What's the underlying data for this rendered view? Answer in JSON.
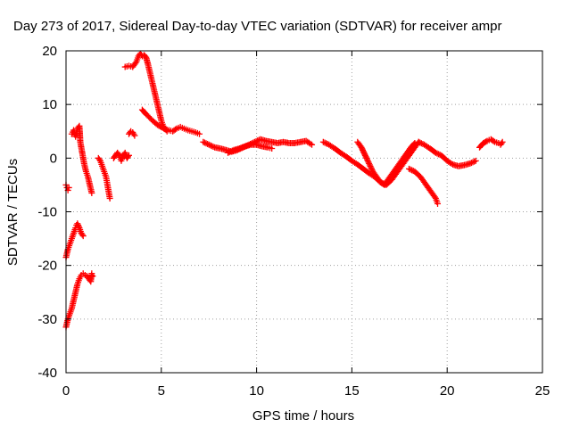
{
  "chart_data": {
    "type": "scatter",
    "title": "Day 273 of 2017, Sidereal Day-to-day VTEC variation (SDTVAR) for receiver ampr",
    "xlabel": "GPS time / hours",
    "ylabel": "SDTVAR / TECUs",
    "xlim": [
      0,
      25
    ],
    "ylim": [
      -40,
      20
    ],
    "xticks": [
      0,
      5,
      10,
      15,
      20,
      25
    ],
    "yticks": [
      -40,
      -30,
      -20,
      -10,
      0,
      10,
      20
    ],
    "x_tick_labels": [
      "0",
      "5",
      "10",
      "15",
      "20",
      "25"
    ],
    "y_tick_labels": [
      "-40",
      "-30",
      "-20",
      "-10",
      "0",
      "10",
      "20"
    ],
    "grid": true,
    "marker": "plus",
    "color": "#ff0000",
    "series": [
      {
        "segments": [
          [
            [
              0.0,
              -5.0
            ],
            [
              0.05,
              -5.5
            ],
            [
              0.1,
              -6.0
            ],
            [
              0.15,
              -5.5
            ]
          ],
          [
            [
              0.0,
              -31.5
            ],
            [
              0.1,
              -30.0
            ],
            [
              0.2,
              -29.0
            ],
            [
              0.3,
              -28.0
            ],
            [
              0.4,
              -26.5
            ],
            [
              0.5,
              -25.0
            ],
            [
              0.6,
              -23.5
            ],
            [
              0.7,
              -22.5
            ],
            [
              0.8,
              -21.8
            ],
            [
              0.9,
              -21.5
            ],
            [
              1.0,
              -21.8
            ],
            [
              1.1,
              -22.0
            ],
            [
              1.2,
              -22.5
            ],
            [
              1.3,
              -23.0
            ],
            [
              1.35,
              -21.5
            ],
            [
              1.4,
              -22.0
            ]
          ],
          [
            [
              0.0,
              -18.5
            ],
            [
              0.1,
              -17.0
            ],
            [
              0.2,
              -16.0
            ],
            [
              0.3,
              -15.0
            ],
            [
              0.4,
              -14.0
            ],
            [
              0.5,
              -13.0
            ],
            [
              0.55,
              -12.5
            ],
            [
              0.6,
              -12.2
            ],
            [
              0.7,
              -13.0
            ],
            [
              0.8,
              -14.0
            ],
            [
              0.9,
              -14.5
            ]
          ],
          [
            [
              0.3,
              4.5
            ],
            [
              0.4,
              5.2
            ],
            [
              0.5,
              4.0
            ],
            [
              0.6,
              5.5
            ],
            [
              0.7,
              6.0
            ],
            [
              0.75,
              3.0
            ],
            [
              0.85,
              1.0
            ],
            [
              0.95,
              -1.0
            ],
            [
              1.05,
              -2.5
            ],
            [
              1.15,
              -3.5
            ],
            [
              1.25,
              -5.0
            ],
            [
              1.35,
              -6.5
            ]
          ],
          [
            [
              1.7,
              0.0
            ],
            [
              1.8,
              -0.5
            ],
            [
              1.9,
              -1.5
            ],
            [
              2.0,
              -2.5
            ],
            [
              2.1,
              -3.5
            ],
            [
              2.15,
              -4.5
            ],
            [
              2.2,
              -5.5
            ],
            [
              2.25,
              -6.5
            ],
            [
              2.3,
              -7.5
            ]
          ],
          [
            [
              2.5,
              0.0
            ],
            [
              2.6,
              0.5
            ],
            [
              2.7,
              1.0
            ],
            [
              2.8,
              0.5
            ],
            [
              2.9,
              -0.5
            ],
            [
              3.0,
              0.5
            ],
            [
              3.1,
              1.0
            ],
            [
              3.2,
              0.0
            ],
            [
              3.3,
              0.5
            ]
          ],
          [
            [
              3.3,
              4.5
            ],
            [
              3.4,
              5.0
            ],
            [
              3.5,
              4.8
            ],
            [
              3.6,
              4.2
            ]
          ],
          [
            [
              3.1,
              17.0
            ],
            [
              3.3,
              17.2
            ],
            [
              3.5,
              17.0
            ],
            [
              3.7,
              18.0
            ],
            [
              3.8,
              19.0
            ],
            [
              3.9,
              19.5
            ],
            [
              4.0,
              19.0
            ],
            [
              4.1,
              19.2
            ],
            [
              4.2,
              18.8
            ],
            [
              4.3,
              17.5
            ],
            [
              4.4,
              16.0
            ],
            [
              4.5,
              14.5
            ],
            [
              4.6,
              13.0
            ],
            [
              4.7,
              11.5
            ],
            [
              4.8,
              10.0
            ],
            [
              4.9,
              8.5
            ],
            [
              5.0,
              7.0
            ],
            [
              5.1,
              6.0
            ],
            [
              5.2,
              5.5
            ],
            [
              5.3,
              5.0
            ]
          ],
          [
            [
              4.0,
              9.0
            ],
            [
              4.2,
              8.2
            ],
            [
              4.4,
              7.5
            ],
            [
              4.6,
              6.8
            ],
            [
              4.8,
              6.2
            ],
            [
              5.0,
              5.8
            ],
            [
              5.2,
              5.4
            ],
            [
              5.4,
              5.2
            ],
            [
              5.6,
              5.0
            ],
            [
              5.8,
              5.5
            ],
            [
              6.0,
              5.8
            ],
            [
              6.2,
              5.5
            ],
            [
              6.4,
              5.2
            ],
            [
              6.6,
              5.0
            ],
            [
              6.8,
              4.8
            ],
            [
              7.0,
              4.5
            ]
          ],
          [
            [
              7.2,
              3.0
            ],
            [
              7.5,
              2.5
            ],
            [
              7.8,
              2.0
            ],
            [
              8.1,
              1.8
            ],
            [
              8.4,
              1.5
            ],
            [
              8.7,
              1.2
            ],
            [
              9.0,
              1.5
            ],
            [
              9.3,
              2.0
            ],
            [
              9.6,
              2.5
            ],
            [
              9.9,
              3.0
            ],
            [
              10.2,
              3.5
            ],
            [
              10.5,
              3.2
            ],
            [
              10.8,
              3.0
            ],
            [
              11.1,
              2.8
            ],
            [
              11.4,
              3.0
            ],
            [
              11.7,
              2.8
            ],
            [
              12.0,
              2.8
            ],
            [
              12.3,
              3.0
            ],
            [
              12.6,
              3.2
            ],
            [
              12.9,
              2.5
            ]
          ],
          [
            [
              8.5,
              1.0
            ],
            [
              8.8,
              1.5
            ],
            [
              9.1,
              1.8
            ],
            [
              9.4,
              2.2
            ],
            [
              9.7,
              2.5
            ],
            [
              10.0,
              2.5
            ],
            [
              10.3,
              2.2
            ],
            [
              10.6,
              2.0
            ],
            [
              10.8,
              1.8
            ]
          ],
          [
            [
              13.5,
              3.0
            ],
            [
              13.8,
              2.5
            ],
            [
              14.1,
              1.8
            ],
            [
              14.4,
              1.0
            ],
            [
              14.7,
              0.3
            ],
            [
              15.0,
              -0.5
            ],
            [
              15.3,
              -1.2
            ],
            [
              15.6,
              -2.0
            ],
            [
              15.9,
              -2.8
            ],
            [
              16.2,
              -3.5
            ],
            [
              16.5,
              -4.5
            ],
            [
              16.8,
              -5.0
            ],
            [
              17.1,
              -4.0
            ],
            [
              17.4,
              -2.5
            ],
            [
              17.7,
              -1.0
            ],
            [
              18.0,
              0.5
            ],
            [
              18.3,
              2.0
            ],
            [
              18.5,
              3.0
            ]
          ],
          [
            [
              15.3,
              3.0
            ],
            [
              15.5,
              2.0
            ],
            [
              15.7,
              0.5
            ],
            [
              15.9,
              -1.0
            ],
            [
              16.1,
              -2.5
            ],
            [
              16.3,
              -3.5
            ],
            [
              16.5,
              -4.5
            ],
            [
              16.7,
              -5.0
            ],
            [
              16.9,
              -4.0
            ],
            [
              17.1,
              -3.0
            ],
            [
              17.3,
              -2.0
            ],
            [
              17.5,
              -1.0
            ],
            [
              17.7,
              0.0
            ],
            [
              17.9,
              1.0
            ],
            [
              18.1,
              2.0
            ],
            [
              18.3,
              2.8
            ]
          ],
          [
            [
              18.5,
              3.0
            ],
            [
              18.8,
              2.5
            ],
            [
              19.1,
              1.8
            ],
            [
              19.4,
              1.0
            ],
            [
              19.7,
              0.5
            ],
            [
              20.0,
              -0.5
            ],
            [
              20.3,
              -1.2
            ],
            [
              20.6,
              -1.5
            ],
            [
              20.9,
              -1.3
            ],
            [
              21.2,
              -1.0
            ],
            [
              21.5,
              -0.5
            ]
          ],
          [
            [
              18.0,
              -2.0
            ],
            [
              18.3,
              -2.5
            ],
            [
              18.6,
              -3.5
            ],
            [
              18.9,
              -5.0
            ],
            [
              19.2,
              -6.5
            ],
            [
              19.4,
              -7.5
            ],
            [
              19.5,
              -8.5
            ]
          ],
          [
            [
              21.7,
              2.0
            ],
            [
              21.9,
              2.8
            ],
            [
              22.1,
              3.2
            ],
            [
              22.3,
              3.5
            ],
            [
              22.5,
              3.0
            ],
            [
              22.7,
              2.8
            ],
            [
              22.8,
              2.5
            ],
            [
              22.9,
              3.0
            ]
          ]
        ]
      }
    ]
  }
}
